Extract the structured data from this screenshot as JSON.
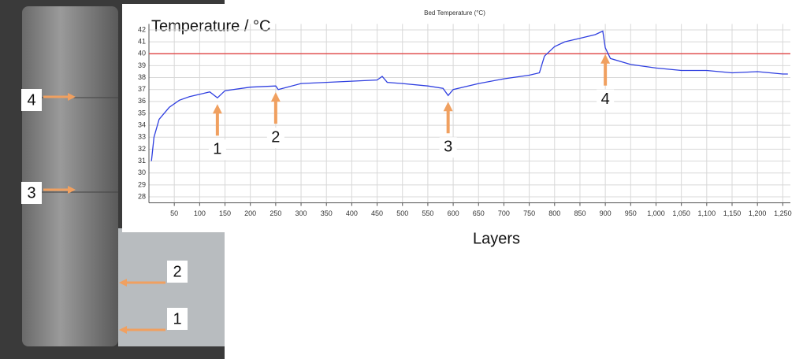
{
  "chart_data": {
    "type": "line",
    "title": "Bed Temperature (°C)",
    "y_label": "Temperature / °C",
    "x_label": "Layers",
    "x": [
      5,
      10,
      20,
      40,
      60,
      80,
      100,
      120,
      135,
      150,
      200,
      250,
      255,
      300,
      350,
      400,
      450,
      460,
      470,
      500,
      550,
      580,
      590,
      600,
      650,
      700,
      750,
      770,
      780,
      800,
      820,
      850,
      880,
      895,
      900,
      910,
      950,
      1000,
      1050,
      1100,
      1150,
      1200,
      1250,
      1260
    ],
    "values": [
      31,
      33,
      34.5,
      35.5,
      36.1,
      36.4,
      36.6,
      36.8,
      36.3,
      36.9,
      37.2,
      37.3,
      37.0,
      37.5,
      37.6,
      37.7,
      37.8,
      38.1,
      37.6,
      37.5,
      37.3,
      37.1,
      36.5,
      37.0,
      37.5,
      37.9,
      38.2,
      38.4,
      39.8,
      40.6,
      41.0,
      41.3,
      41.6,
      41.9,
      40.5,
      39.6,
      39.1,
      38.8,
      38.6,
      38.6,
      38.4,
      38.5,
      38.3,
      38.3
    ],
    "color": "#2f3fe0",
    "threshold": 40,
    "threshold_color": "#e05050",
    "xlim": [
      0,
      1265
    ],
    "ylim": [
      27.5,
      42.5
    ],
    "xticks": [
      50,
      100,
      150,
      200,
      250,
      300,
      350,
      400,
      450,
      500,
      550,
      600,
      650,
      700,
      750,
      800,
      850,
      900,
      950,
      {
        "value": 1000,
        "label": "1,000"
      },
      {
        "value": 1050,
        "label": "1,050"
      },
      {
        "value": 1100,
        "label": "1,100"
      },
      {
        "value": 1150,
        "label": "1,150"
      },
      {
        "value": 1200,
        "label": "1,200"
      },
      {
        "value": 1250,
        "label": "1,250"
      }
    ],
    "yticks": [
      28,
      29,
      30,
      31,
      32,
      33,
      34,
      35,
      36,
      37,
      38,
      39,
      40,
      41,
      42
    ],
    "grid": true,
    "annotations": [
      {
        "text": "1",
        "x": 135
      },
      {
        "text": "2",
        "x": 250
      },
      {
        "text": "3",
        "x": 590
      },
      {
        "text": "4",
        "x": 900
      }
    ]
  },
  "photo": {
    "labels": [
      "4",
      "3",
      "2",
      "1"
    ]
  }
}
